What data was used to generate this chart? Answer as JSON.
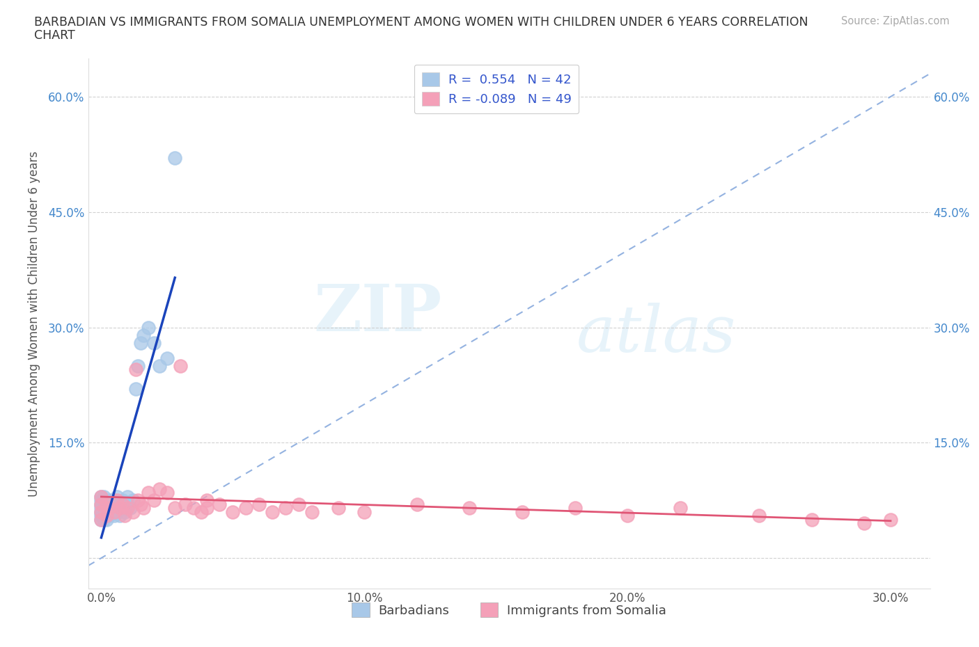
{
  "title_line1": "BARBADIAN VS IMMIGRANTS FROM SOMALIA UNEMPLOYMENT AMONG WOMEN WITH CHILDREN UNDER 6 YEARS CORRELATION",
  "title_line2": "CHART",
  "source": "Source: ZipAtlas.com",
  "ylabel": "Unemployment Among Women with Children Under 6 years",
  "R_blue": 0.554,
  "N_blue": 42,
  "R_pink": -0.089,
  "N_pink": 49,
  "blue_color": "#a8c8e8",
  "pink_color": "#f4a0b8",
  "blue_line_color": "#1a44bb",
  "pink_line_color": "#e05575",
  "diagonal_color": "#88aadd",
  "legend_label_blue": "Barbadians",
  "legend_label_pink": "Immigrants from Somalia",
  "watermark_zip": "ZIP",
  "watermark_atlas": "atlas",
  "xlim_low": -0.005,
  "xlim_high": 0.315,
  "ylim_low": -0.04,
  "ylim_high": 0.65,
  "x_ticks": [
    0.0,
    0.1,
    0.2,
    0.3
  ],
  "y_ticks": [
    0.0,
    0.15,
    0.3,
    0.45,
    0.6
  ],
  "x_tick_labels": [
    "0.0%",
    "10.0%",
    "20.0%",
    "30.0%"
  ],
  "y_tick_labels": [
    "",
    "15.0%",
    "30.0%",
    "45.0%",
    "60.0%"
  ],
  "blue_x": [
    0.0,
    0.0,
    0.0,
    0.0,
    0.0,
    0.0,
    0.0,
    0.001,
    0.001,
    0.001,
    0.001,
    0.002,
    0.002,
    0.002,
    0.003,
    0.003,
    0.003,
    0.004,
    0.004,
    0.005,
    0.005,
    0.005,
    0.006,
    0.006,
    0.007,
    0.007,
    0.008,
    0.008,
    0.009,
    0.01,
    0.01,
    0.011,
    0.012,
    0.013,
    0.014,
    0.015,
    0.016,
    0.018,
    0.02,
    0.022,
    0.025,
    0.028
  ],
  "blue_y": [
    0.06,
    0.07,
    0.08,
    0.05,
    0.055,
    0.065,
    0.075,
    0.06,
    0.07,
    0.05,
    0.08,
    0.06,
    0.07,
    0.05,
    0.065,
    0.075,
    0.055,
    0.06,
    0.07,
    0.055,
    0.065,
    0.075,
    0.06,
    0.08,
    0.07,
    0.055,
    0.065,
    0.075,
    0.06,
    0.07,
    0.08,
    0.065,
    0.075,
    0.22,
    0.25,
    0.28,
    0.29,
    0.3,
    0.28,
    0.25,
    0.26,
    0.52
  ],
  "pink_x": [
    0.0,
    0.0,
    0.0,
    0.0,
    0.002,
    0.002,
    0.003,
    0.005,
    0.006,
    0.007,
    0.008,
    0.009,
    0.01,
    0.012,
    0.013,
    0.014,
    0.015,
    0.016,
    0.018,
    0.02,
    0.022,
    0.025,
    0.028,
    0.03,
    0.032,
    0.035,
    0.038,
    0.04,
    0.04,
    0.045,
    0.05,
    0.055,
    0.06,
    0.065,
    0.07,
    0.075,
    0.08,
    0.09,
    0.1,
    0.12,
    0.14,
    0.16,
    0.18,
    0.2,
    0.22,
    0.25,
    0.27,
    0.29,
    0.3
  ],
  "pink_y": [
    0.06,
    0.07,
    0.05,
    0.08,
    0.07,
    0.055,
    0.065,
    0.06,
    0.075,
    0.065,
    0.07,
    0.055,
    0.065,
    0.06,
    0.245,
    0.075,
    0.07,
    0.065,
    0.085,
    0.075,
    0.09,
    0.085,
    0.065,
    0.25,
    0.07,
    0.065,
    0.06,
    0.075,
    0.065,
    0.07,
    0.06,
    0.065,
    0.07,
    0.06,
    0.065,
    0.07,
    0.06,
    0.065,
    0.06,
    0.07,
    0.065,
    0.06,
    0.065,
    0.055,
    0.065,
    0.055,
    0.05,
    0.045,
    0.05
  ]
}
